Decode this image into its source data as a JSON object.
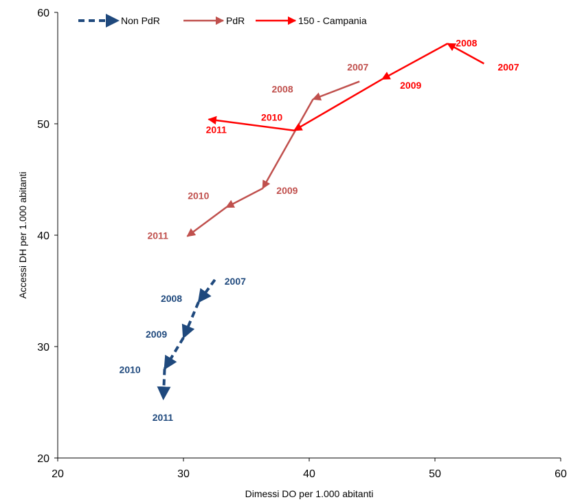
{
  "chart_data": {
    "type": "line",
    "title": "",
    "xlabel": "Dimessi DO per 1.000 abitanti",
    "ylabel": "Accessi DH per 1.000 abitanti",
    "xlim": [
      20,
      60
    ],
    "ylim": [
      20,
      60
    ],
    "x_ticks": [
      20,
      30,
      40,
      50,
      60
    ],
    "y_ticks": [
      20,
      30,
      40,
      50,
      60
    ],
    "grid": false,
    "legend_position": "top",
    "series": [
      {
        "name": "Non PdR",
        "color": "#1f497d",
        "dashed": true,
        "points": [
          {
            "year": "2007",
            "x": 32.5,
            "y": 36.0
          },
          {
            "year": "2008",
            "x": 31.2,
            "y": 34.0
          },
          {
            "year": "2009",
            "x": 30.0,
            "y": 30.8
          },
          {
            "year": "2010",
            "x": 28.5,
            "y": 28.0
          },
          {
            "year": "2011",
            "x": 28.4,
            "y": 25.3
          }
        ]
      },
      {
        "name": "PdR",
        "color": "#c0504d",
        "dashed": false,
        "points": [
          {
            "year": "2007",
            "x": 44.0,
            "y": 53.8
          },
          {
            "year": "2008",
            "x": 40.3,
            "y": 52.2
          },
          {
            "year": "2009",
            "x": 36.3,
            "y": 44.2
          },
          {
            "year": "2010",
            "x": 33.4,
            "y": 42.5
          },
          {
            "year": "2011",
            "x": 30.3,
            "y": 39.9
          }
        ]
      },
      {
        "name": "150 - Campania",
        "color": "#ff0000",
        "dashed": false,
        "points": [
          {
            "year": "2007",
            "x": 53.9,
            "y": 55.4
          },
          {
            "year": "2008",
            "x": 51.0,
            "y": 57.2
          },
          {
            "year": "2009",
            "x": 45.8,
            "y": 54.0
          },
          {
            "year": "2010",
            "x": 38.8,
            "y": 49.4
          },
          {
            "year": "2011",
            "x": 32.0,
            "y": 50.4
          }
        ]
      }
    ]
  }
}
